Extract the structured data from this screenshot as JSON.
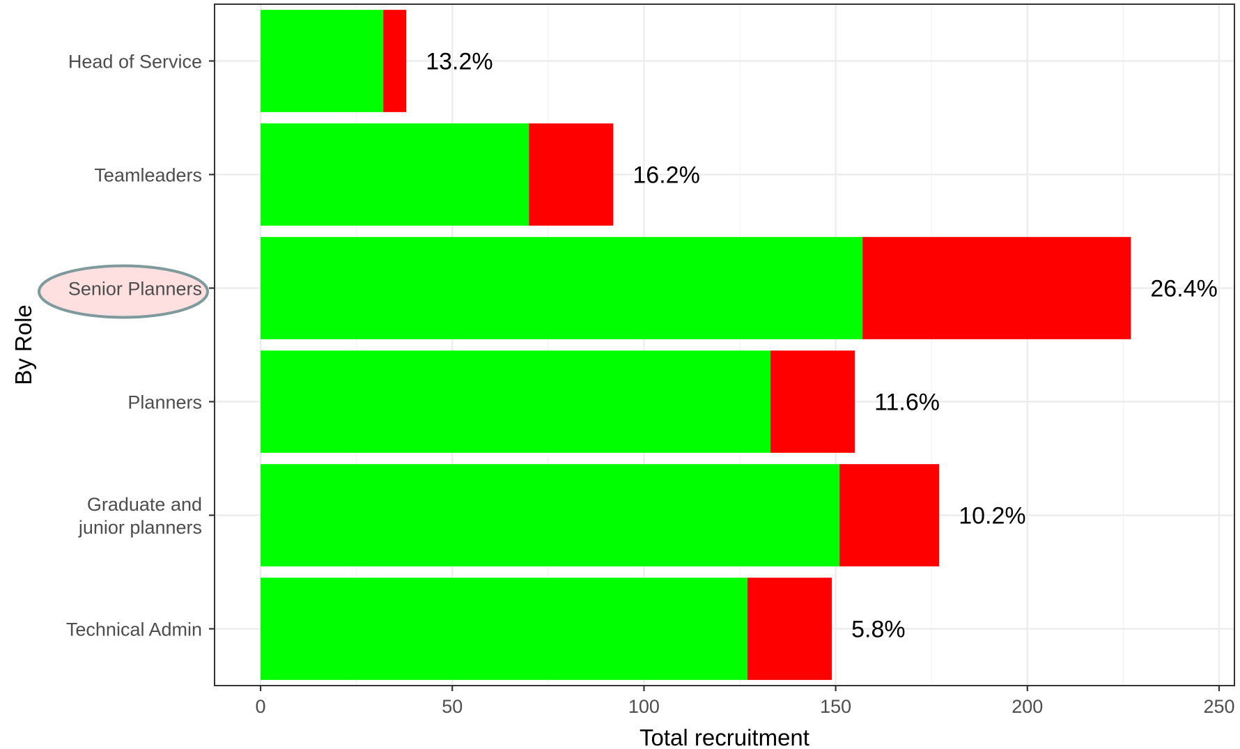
{
  "chart_data": {
    "type": "bar",
    "orientation": "horizontal",
    "stacked": true,
    "categories": [
      "Head of Service",
      "Teamleaders",
      "Senior Planners",
      "Planners",
      "Graduate and\njunior planners",
      "Technical Admin"
    ],
    "series": [
      {
        "values": [
          32,
          70,
          157,
          133,
          151,
          127
        ],
        "color": "#00ff00"
      },
      {
        "values": [
          6,
          22,
          70,
          22,
          26,
          22
        ],
        "color": "#ff0000"
      }
    ],
    "bar_labels": [
      "13.2%",
      "16.2%",
      "26.4%",
      "11.6%",
      "10.2%",
      "5.8%"
    ],
    "xlabel": "Total recruitment",
    "ylabel": "By Role",
    "xlim": [
      -12,
      254
    ],
    "xticks": [
      0,
      50,
      100,
      150,
      200,
      250
    ],
    "grid": true,
    "legend": "none",
    "highlighted_category": "Senior Planners",
    "highlight_fill": "#ffe0e0",
    "highlight_stroke": "#7f9a9c"
  }
}
